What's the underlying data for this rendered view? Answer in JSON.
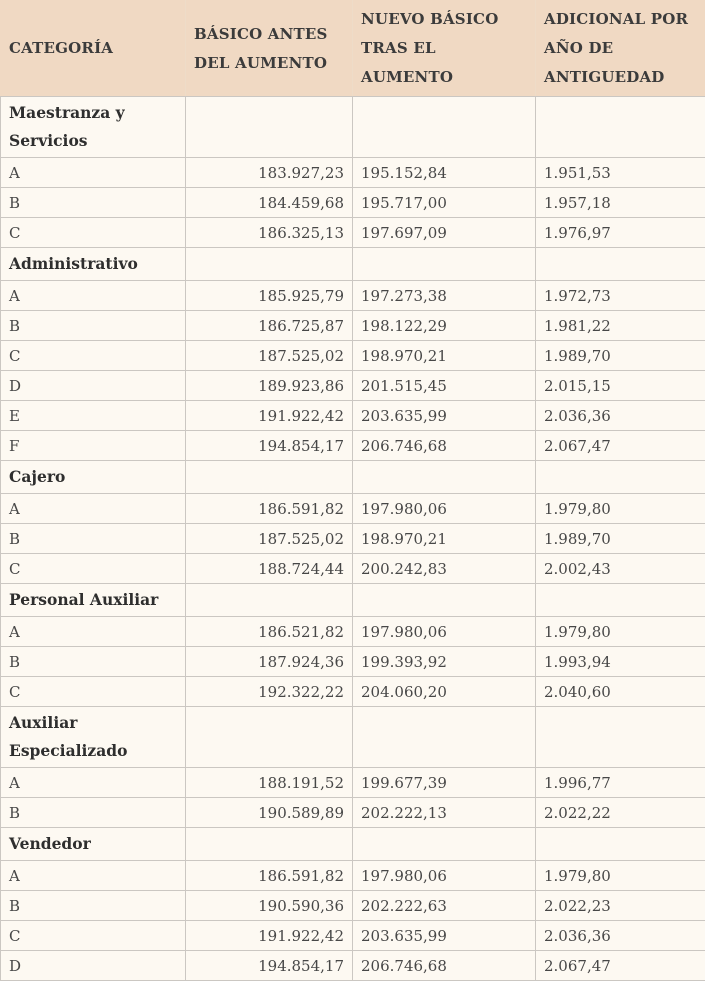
{
  "colors": {
    "header_bg": "#f0d9c3",
    "body_bg": "#fdf9f2",
    "border": "#cbc7c2",
    "header_border": "#eedcc8",
    "header_text": "#3b3b3b",
    "body_text": "#474747",
    "section_text": "#2e2e2e"
  },
  "chart_data": {
    "type": "table",
    "columns": [
      "CATEGORÍA",
      "BÁSICO ANTES DEL AUMENTO",
      "NUEVO BÁSICO TRAS EL AUMENTO",
      "ADICIONAL POR AÑO DE ANTIGUEDAD"
    ],
    "sections": [
      {
        "name": "Maestranza y Servicios",
        "rows": [
          [
            "A",
            "183.927,23",
            "195.152,84",
            "1.951,53"
          ],
          [
            "B",
            "184.459,68",
            "195.717,00",
            "1.957,18"
          ],
          [
            "C",
            "186.325,13",
            "197.697,09",
            "1.976,97"
          ]
        ]
      },
      {
        "name": "Administrativo",
        "rows": [
          [
            "A",
            "185.925,79",
            "197.273,38",
            "1.972,73"
          ],
          [
            "B",
            "186.725,87",
            "198.122,29",
            "1.981,22"
          ],
          [
            "C",
            "187.525,02",
            "198.970,21",
            "1.989,70"
          ],
          [
            "D",
            "189.923,86",
            "201.515,45",
            "2.015,15"
          ],
          [
            "E",
            "191.922,42",
            "203.635,99",
            "2.036,36"
          ],
          [
            "F",
            "194.854,17",
            "206.746,68",
            "2.067,47"
          ]
        ]
      },
      {
        "name": "Cajero",
        "rows": [
          [
            "A",
            "186.591,82",
            "197.980,06",
            "1.979,80"
          ],
          [
            "B",
            "187.525,02",
            "198.970,21",
            "1.989,70"
          ],
          [
            "C",
            "188.724,44",
            "200.242,83",
            "2.002,43"
          ]
        ]
      },
      {
        "name": "Personal Auxiliar",
        "rows": [
          [
            "A",
            "186.521,82",
            "197.980,06",
            "1.979,80"
          ],
          [
            "B",
            "187.924,36",
            "199.393,92",
            "1.993,94"
          ],
          [
            "C",
            "192.322,22",
            "204.060,20",
            "2.040,60"
          ]
        ]
      },
      {
        "name": "Auxiliar Especializado",
        "rows": [
          [
            "A",
            "188.191,52",
            "199.677,39",
            "1.996,77"
          ],
          [
            "B",
            "190.589,89",
            "202.222,13",
            "2.022,22"
          ]
        ]
      },
      {
        "name": "Vendedor",
        "rows": [
          [
            "A",
            "186.591,82",
            "197.980,06",
            "1.979,80"
          ],
          [
            "B",
            "190.590,36",
            "202.222,63",
            "2.022,23"
          ],
          [
            "C",
            "191.922,42",
            "203.635,99",
            "2.036,36"
          ],
          [
            "D",
            "194.854,17",
            "206.746,68",
            "2.067,47"
          ]
        ]
      }
    ]
  }
}
